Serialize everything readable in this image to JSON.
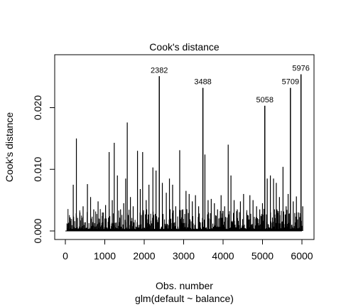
{
  "chart_data": {
    "type": "bar",
    "title": "Cook's distance",
    "xlabel": "Obs. number",
    "subtitle": "glm(default ~ balance)",
    "ylabel": "Cook's distance",
    "xlim": [
      0,
      6100
    ],
    "ylim": [
      0,
      0.026
    ],
    "x_ticks": [
      0,
      1000,
      2000,
      3000,
      4000,
      5000,
      6000
    ],
    "x_tick_labels": [
      "0",
      "1000",
      "2000",
      "3000",
      "4000",
      "5000",
      "6000"
    ],
    "y_ticks": [
      0.0,
      0.01,
      0.02
    ],
    "y_tick_labels": [
      "0.000",
      "0.010",
      "0.020"
    ],
    "grid": false,
    "highlighted": [
      {
        "obs": 2382,
        "label": "2382",
        "value": 0.0251
      },
      {
        "obs": 3488,
        "label": "3488",
        "value": 0.0232
      },
      {
        "obs": 5058,
        "label": "5058",
        "value": 0.0203
      },
      {
        "obs": 5709,
        "label": "5709",
        "value": 0.0232
      },
      {
        "obs": 5976,
        "label": "5976",
        "value": 0.0254
      }
    ],
    "spikes": [
      {
        "x": 120,
        "value": 0.0022
      },
      {
        "x": 200,
        "value": 0.0075
      },
      {
        "x": 280,
        "value": 0.015
      },
      {
        "x": 370,
        "value": 0.003
      },
      {
        "x": 450,
        "value": 0.004
      },
      {
        "x": 560,
        "value": 0.0076
      },
      {
        "x": 640,
        "value": 0.0055
      },
      {
        "x": 720,
        "value": 0.0035
      },
      {
        "x": 830,
        "value": 0.0048
      },
      {
        "x": 940,
        "value": 0.003
      },
      {
        "x": 1020,
        "value": 0.0042
      },
      {
        "x": 1110,
        "value": 0.0128
      },
      {
        "x": 1190,
        "value": 0.005
      },
      {
        "x": 1240,
        "value": 0.0143
      },
      {
        "x": 1320,
        "value": 0.009
      },
      {
        "x": 1400,
        "value": 0.0035
      },
      {
        "x": 1480,
        "value": 0.0045
      },
      {
        "x": 1530,
        "value": 0.0085
      },
      {
        "x": 1570,
        "value": 0.0176
      },
      {
        "x": 1650,
        "value": 0.0055
      },
      {
        "x": 1720,
        "value": 0.004
      },
      {
        "x": 1830,
        "value": 0.013
      },
      {
        "x": 1900,
        "value": 0.0068
      },
      {
        "x": 1960,
        "value": 0.0128
      },
      {
        "x": 2050,
        "value": 0.005
      },
      {
        "x": 2120,
        "value": 0.0075
      },
      {
        "x": 2220,
        "value": 0.0103
      },
      {
        "x": 2300,
        "value": 0.0098
      },
      {
        "x": 2382,
        "value": 0.0251
      },
      {
        "x": 2460,
        "value": 0.0078
      },
      {
        "x": 2560,
        "value": 0.0062
      },
      {
        "x": 2640,
        "value": 0.0085
      },
      {
        "x": 2720,
        "value": 0.0075
      },
      {
        "x": 2800,
        "value": 0.004
      },
      {
        "x": 2900,
        "value": 0.0131
      },
      {
        "x": 2980,
        "value": 0.0035
      },
      {
        "x": 3060,
        "value": 0.0065
      },
      {
        "x": 3140,
        "value": 0.006
      },
      {
        "x": 3220,
        "value": 0.0048
      },
      {
        "x": 3300,
        "value": 0.0058
      },
      {
        "x": 3380,
        "value": 0.004
      },
      {
        "x": 3488,
        "value": 0.0232
      },
      {
        "x": 3540,
        "value": 0.0124
      },
      {
        "x": 3620,
        "value": 0.005
      },
      {
        "x": 3700,
        "value": 0.0052
      },
      {
        "x": 3780,
        "value": 0.0045
      },
      {
        "x": 3860,
        "value": 0.0035
      },
      {
        "x": 3950,
        "value": 0.0058
      },
      {
        "x": 4040,
        "value": 0.004
      },
      {
        "x": 4130,
        "value": 0.014
      },
      {
        "x": 4200,
        "value": 0.009
      },
      {
        "x": 4280,
        "value": 0.005
      },
      {
        "x": 4360,
        "value": 0.0035
      },
      {
        "x": 4440,
        "value": 0.0048
      },
      {
        "x": 4520,
        "value": 0.006
      },
      {
        "x": 4600,
        "value": 0.003
      },
      {
        "x": 4680,
        "value": 0.0058
      },
      {
        "x": 4760,
        "value": 0.005
      },
      {
        "x": 4850,
        "value": 0.004
      },
      {
        "x": 4930,
        "value": 0.0035
      },
      {
        "x": 5000,
        "value": 0.0045
      },
      {
        "x": 5058,
        "value": 0.0203
      },
      {
        "x": 5120,
        "value": 0.0085
      },
      {
        "x": 5200,
        "value": 0.009
      },
      {
        "x": 5280,
        "value": 0.0085
      },
      {
        "x": 5350,
        "value": 0.0078
      },
      {
        "x": 5430,
        "value": 0.0055
      },
      {
        "x": 5520,
        "value": 0.0104
      },
      {
        "x": 5600,
        "value": 0.004
      },
      {
        "x": 5650,
        "value": 0.006
      },
      {
        "x": 5709,
        "value": 0.0232
      },
      {
        "x": 5780,
        "value": 0.0048
      },
      {
        "x": 5860,
        "value": 0.0056
      },
      {
        "x": 5920,
        "value": 0.003
      },
      {
        "x": 5976,
        "value": 0.0254
      },
      {
        "x": 6020,
        "value": 0.004
      }
    ]
  }
}
